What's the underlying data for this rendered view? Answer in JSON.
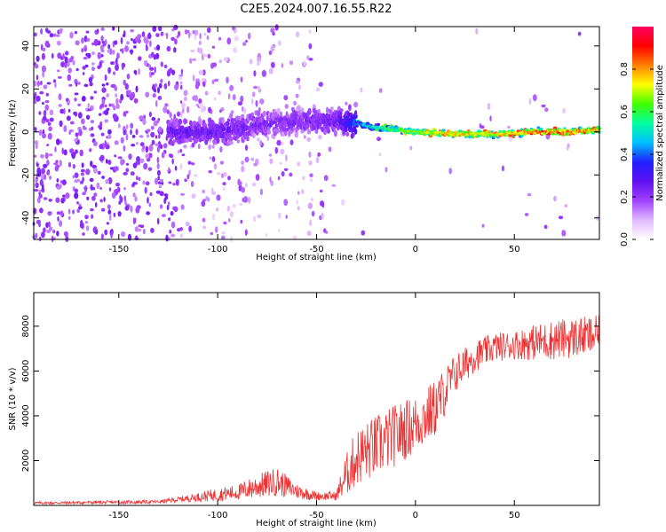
{
  "title": "C2E5.2024.007.16.55.R22",
  "charts": [
    {
      "type": "heatmap",
      "xlabel": "Height of straight line (km)",
      "ylabel": "Frequency (Hz)",
      "xlim": [
        -193,
        93
      ],
      "ylim": [
        -50,
        49
      ],
      "xticks": [
        -150,
        -100,
        -50,
        0,
        50
      ],
      "yticks": [
        -40,
        -20,
        0,
        20,
        40
      ],
      "colorbar": {
        "label": "Normalized spectral amplitude",
        "range": [
          0.0,
          1.0
        ],
        "ticks": [
          0.0,
          0.2,
          0.4,
          0.6,
          0.8
        ],
        "colors": [
          "#ffffff",
          "#e0b8ff",
          "#a040ff",
          "#6010f0",
          "#2020ff",
          "#00c0ff",
          "#00ffa0",
          "#40ff00",
          "#ffff00",
          "#ff8000",
          "#ff0000",
          "#ff0060"
        ]
      },
      "ridge": [
        {
          "x": -123,
          "f": 0,
          "amp": 0.25
        },
        {
          "x": -100,
          "f": 0,
          "amp": 0.25
        },
        {
          "x": -80,
          "f": 3,
          "amp": 0.22
        },
        {
          "x": -60,
          "f": 5,
          "amp": 0.22
        },
        {
          "x": -40,
          "f": 5,
          "amp": 0.25
        },
        {
          "x": -30,
          "f": 4,
          "amp": 0.4
        },
        {
          "x": -20,
          "f": 2,
          "amp": 0.55
        },
        {
          "x": 0,
          "f": 0,
          "amp": 0.7
        },
        {
          "x": 20,
          "f": -1,
          "amp": 0.8
        },
        {
          "x": 40,
          "f": -1,
          "amp": 0.75
        },
        {
          "x": 60,
          "f": 0,
          "amp": 0.85
        },
        {
          "x": 80,
          "f": 0,
          "amp": 0.85
        },
        {
          "x": 93,
          "f": 1,
          "amp": 0.8
        }
      ]
    },
    {
      "type": "line",
      "xlabel": "Height of straight line (km)",
      "ylabel": "SNR (10 * v/v)",
      "xlim": [
        -193,
        93
      ],
      "ylim": [
        0,
        9500
      ],
      "xticks": [
        -150,
        -100,
        -50,
        0,
        50
      ],
      "yticks": [
        2000,
        4000,
        6000,
        8000
      ],
      "series": [
        {
          "color": "#f03030",
          "trend_x": [
            -193,
            -130,
            -120,
            -110,
            -100,
            -90,
            -80,
            -70,
            -60,
            -50,
            -40,
            -36,
            -30,
            -20,
            -10,
            0,
            10,
            20,
            30,
            40,
            50,
            60,
            70,
            80,
            93
          ],
          "trend_y": [
            100,
            150,
            250,
            350,
            450,
            550,
            800,
            1000,
            600,
            400,
            400,
            1100,
            2000,
            2500,
            3000,
            3500,
            4200,
            5800,
            6600,
            7000,
            7100,
            7200,
            7300,
            7400,
            7500
          ],
          "noise": [
            60,
            80,
            120,
            200,
            300,
            350,
            550,
            650,
            350,
            200,
            200,
            900,
            1300,
            1400,
            1400,
            1300,
            1300,
            900,
            700,
            650,
            650,
            800,
            900,
            900,
            900
          ]
        }
      ]
    }
  ]
}
